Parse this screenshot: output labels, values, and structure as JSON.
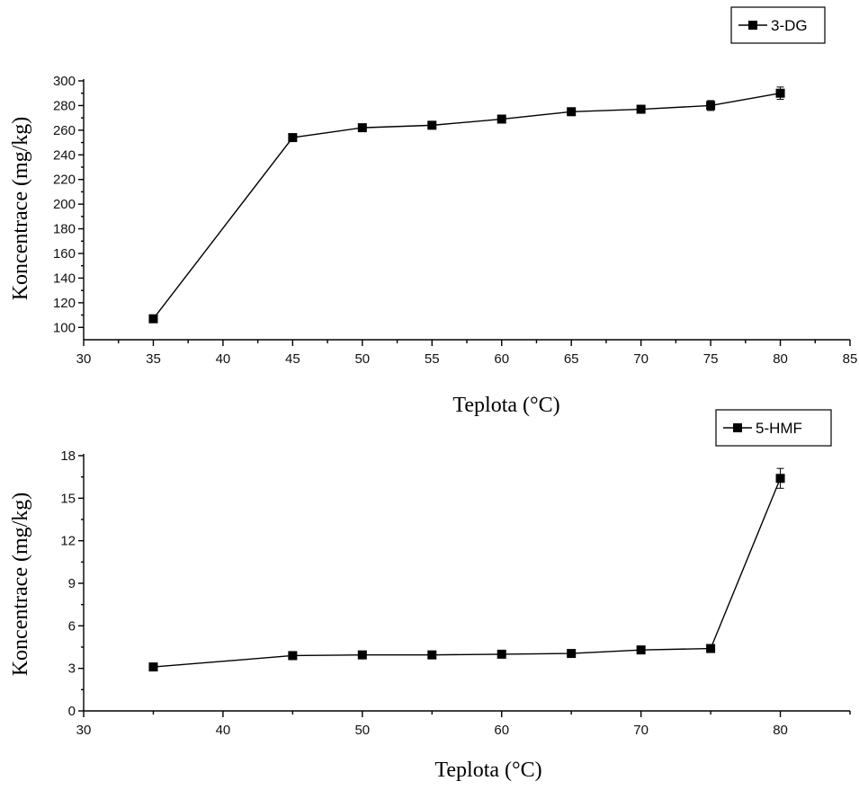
{
  "chart_data": [
    {
      "type": "line",
      "x": [
        35,
        45,
        50,
        55,
        60,
        65,
        70,
        75,
        80
      ],
      "series": [
        {
          "name": "3-DG",
          "values": [
            107,
            254,
            262,
            264,
            269,
            275,
            277,
            280,
            290
          ],
          "errors": [
            3,
            3,
            3,
            3,
            3,
            3,
            3,
            4,
            5
          ]
        }
      ],
      "xlabel": "Teplota (°C)",
      "ylabel": "Koncentrace (mg/kg)",
      "xlim": [
        30,
        85
      ],
      "ylim": [
        90,
        300
      ],
      "xticks": [
        30,
        35,
        40,
        45,
        50,
        55,
        60,
        65,
        70,
        75,
        80,
        85
      ],
      "yticks": [
        100,
        120,
        140,
        160,
        180,
        200,
        220,
        240,
        260,
        280,
        300
      ],
      "grid": false,
      "legend": "top-right"
    },
    {
      "type": "line",
      "x": [
        35,
        45,
        50,
        55,
        60,
        65,
        70,
        75,
        80
      ],
      "series": [
        {
          "name": "5-HMF",
          "values": [
            3.1,
            3.9,
            3.95,
            3.95,
            4.0,
            4.05,
            4.3,
            4.4,
            16.4
          ],
          "errors": [
            0.25,
            0.2,
            0.2,
            0.2,
            0.2,
            0.25,
            0.2,
            0.2,
            0.7
          ]
        }
      ],
      "xlabel": "Teplota (°C)",
      "ylabel": "Koncentrace (mg/kg)",
      "xlim": [
        30,
        85
      ],
      "ylim": [
        0,
        18
      ],
      "xticks": [
        30,
        40,
        50,
        60,
        70,
        80
      ],
      "yticks": [
        0,
        3,
        6,
        9,
        12,
        15,
        18
      ],
      "grid": false,
      "legend": "top-right"
    }
  ]
}
